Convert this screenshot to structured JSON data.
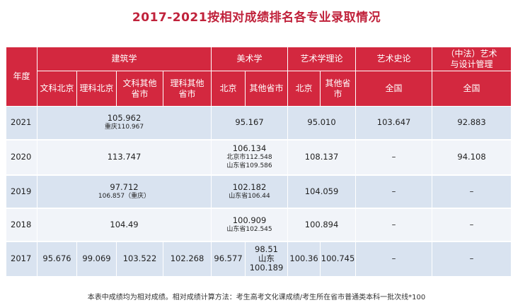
{
  "title": "2017-2021按相对成绩排名各专业录取情况",
  "header": {
    "year": "年度",
    "groups": {
      "architecture": "建筑学",
      "fine_arts": "美术学",
      "art_theory": "艺术学理论",
      "art_history": "艺术史论",
      "design_mgmt_line1": "（中法）艺术",
      "design_mgmt_line2": "与设计管理"
    },
    "sub": {
      "arch_wen_bj": "文科北京",
      "arch_li_bj": "理科北京",
      "arch_wen_other_l1": "文科其他",
      "arch_wen_other_l2": "省市",
      "arch_li_other_l1": "理科其他",
      "arch_li_other_l2": "省市",
      "fa_bj": "北京",
      "fa_other": "其他省市",
      "at_bj": "北京",
      "at_other_l1": "其他省",
      "at_other_l2": "市",
      "ah_nat": "全国",
      "dm_nat": "全国"
    }
  },
  "rows": {
    "r2021": {
      "year": "2021",
      "arch": "105.962",
      "arch_sub": "重庆110.967",
      "fa": "95.167",
      "at": "95.010",
      "ah": "103.647",
      "dm": "92.883"
    },
    "r2020": {
      "year": "2020",
      "arch": "113.747",
      "fa": "106.134",
      "fa_sub1": "北京市112.548",
      "fa_sub2": "山东省109.586",
      "at": "108.137",
      "ah": "–",
      "dm": "94.108"
    },
    "r2019": {
      "year": "2019",
      "arch": "97.712",
      "arch_sub": "106.857（重庆）",
      "fa": "102.182",
      "fa_sub": "山东省106.44",
      "at": "104.059",
      "ah": "–",
      "dm": "–"
    },
    "r2018": {
      "year": "2018",
      "arch": "104.49",
      "fa": "100.909",
      "fa_sub": "山东省102.545",
      "at": "100.894",
      "ah": "–",
      "dm": "–"
    },
    "r2017": {
      "year": "2017",
      "arch_wen_bj": "95.676",
      "arch_li_bj": "99.069",
      "arch_wen_other": "103.522",
      "arch_li_other": "102.268",
      "fa_bj": "96.577",
      "fa_other_l1": "98.51",
      "fa_other_l2": "山东",
      "fa_other_l3": "100.189",
      "at_bj": "100.36",
      "at_other": "100.745",
      "ah": "–",
      "dm": "–"
    }
  },
  "footnote": "本表中成绩均为相对成绩。相对成绩计算方法：考生高考文化课成绩/考生所在省市普通类本科一批次线*100"
}
